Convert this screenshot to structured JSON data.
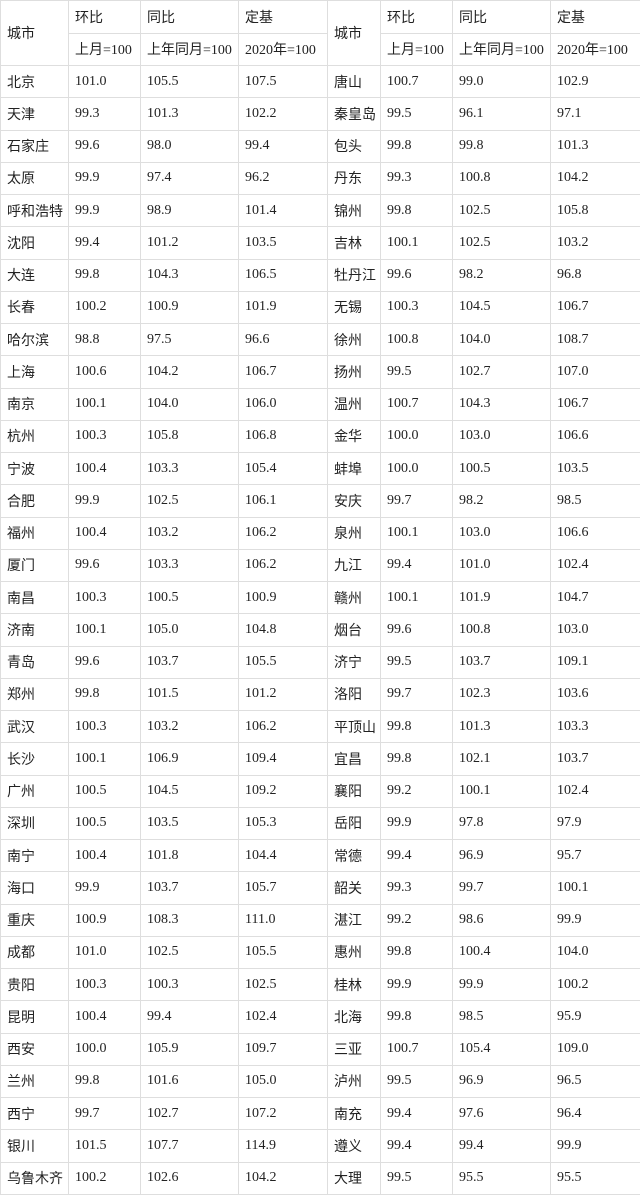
{
  "header": {
    "city": "城市",
    "mom": "环比",
    "yoy": "同比",
    "fixed": "定基",
    "mom_base": "上月=100",
    "yoy_base": "上年同月=100",
    "fixed_base": "2020年=100"
  },
  "rows": [
    [
      "北京",
      "101.0",
      "105.5",
      "107.5",
      "唐山",
      "100.7",
      "99.0",
      "102.9"
    ],
    [
      "天津",
      "99.3",
      "101.3",
      "102.2",
      "秦皇岛",
      "99.5",
      "96.1",
      "97.1"
    ],
    [
      "石家庄",
      "99.6",
      "98.0",
      "99.4",
      "包头",
      "99.8",
      "99.8",
      "101.3"
    ],
    [
      "太原",
      "99.9",
      "97.4",
      "96.2",
      "丹东",
      "99.3",
      "100.8",
      "104.2"
    ],
    [
      "呼和浩特",
      "99.9",
      "98.9",
      "101.4",
      "锦州",
      "99.8",
      "102.5",
      "105.8"
    ],
    [
      "沈阳",
      "99.4",
      "101.2",
      "103.5",
      "吉林",
      "100.1",
      "102.5",
      "103.2"
    ],
    [
      "大连",
      "99.8",
      "104.3",
      "106.5",
      "牡丹江",
      "99.6",
      "98.2",
      "96.8"
    ],
    [
      "长春",
      "100.2",
      "100.9",
      "101.9",
      "无锡",
      "100.3",
      "104.5",
      "106.7"
    ],
    [
      "哈尔滨",
      "98.8",
      "97.5",
      "96.6",
      "徐州",
      "100.8",
      "104.0",
      "108.7"
    ],
    [
      "上海",
      "100.6",
      "104.2",
      "106.7",
      "扬州",
      "99.5",
      "102.7",
      "107.0"
    ],
    [
      "南京",
      "100.1",
      "104.0",
      "106.0",
      "温州",
      "100.7",
      "104.3",
      "106.7"
    ],
    [
      "杭州",
      "100.3",
      "105.8",
      "106.8",
      "金华",
      "100.0",
      "103.0",
      "106.6"
    ],
    [
      "宁波",
      "100.4",
      "103.3",
      "105.4",
      "蚌埠",
      "100.0",
      "100.5",
      "103.5"
    ],
    [
      "合肥",
      "99.9",
      "102.5",
      "106.1",
      "安庆",
      "99.7",
      "98.2",
      "98.5"
    ],
    [
      "福州",
      "100.4",
      "103.2",
      "106.2",
      "泉州",
      "100.1",
      "103.0",
      "106.6"
    ],
    [
      "厦门",
      "99.6",
      "103.3",
      "106.2",
      "九江",
      "99.4",
      "101.0",
      "102.4"
    ],
    [
      "南昌",
      "100.3",
      "100.5",
      "100.9",
      "赣州",
      "100.1",
      "101.9",
      "104.7"
    ],
    [
      "济南",
      "100.1",
      "105.0",
      "104.8",
      "烟台",
      "99.6",
      "100.8",
      "103.0"
    ],
    [
      "青岛",
      "99.6",
      "103.7",
      "105.5",
      "济宁",
      "99.5",
      "103.7",
      "109.1"
    ],
    [
      "郑州",
      "99.8",
      "101.5",
      "101.2",
      "洛阳",
      "99.7",
      "102.3",
      "103.6"
    ],
    [
      "武汉",
      "100.3",
      "103.2",
      "106.2",
      "平顶山",
      "99.8",
      "101.3",
      "103.3"
    ],
    [
      "长沙",
      "100.1",
      "106.9",
      "109.4",
      "宜昌",
      "99.8",
      "102.1",
      "103.7"
    ],
    [
      "广州",
      "100.5",
      "104.5",
      "109.2",
      "襄阳",
      "99.2",
      "100.1",
      "102.4"
    ],
    [
      "深圳",
      "100.5",
      "103.5",
      "105.3",
      "岳阳",
      "99.9",
      "97.8",
      "97.9"
    ],
    [
      "南宁",
      "100.4",
      "101.8",
      "104.4",
      "常德",
      "99.4",
      "96.9",
      "95.7"
    ],
    [
      "海口",
      "99.9",
      "103.7",
      "105.7",
      "韶关",
      "99.3",
      "99.7",
      "100.1"
    ],
    [
      "重庆",
      "100.9",
      "108.3",
      "111.0",
      "湛江",
      "99.2",
      "98.6",
      "99.9"
    ],
    [
      "成都",
      "101.0",
      "102.5",
      "105.5",
      "惠州",
      "99.8",
      "100.4",
      "104.0"
    ],
    [
      "贵阳",
      "100.3",
      "100.3",
      "102.5",
      "桂林",
      "99.9",
      "99.9",
      "100.2"
    ],
    [
      "昆明",
      "100.4",
      "99.4",
      "102.4",
      "北海",
      "99.8",
      "98.5",
      "95.9"
    ],
    [
      "西安",
      "100.0",
      "105.9",
      "109.7",
      "三亚",
      "100.7",
      "105.4",
      "109.0"
    ],
    [
      "兰州",
      "99.8",
      "101.6",
      "105.0",
      "泸州",
      "99.5",
      "96.9",
      "96.5"
    ],
    [
      "西宁",
      "99.7",
      "102.7",
      "107.2",
      "南充",
      "99.4",
      "97.6",
      "96.4"
    ],
    [
      "银川",
      "101.5",
      "107.7",
      "114.9",
      "遵义",
      "99.4",
      "99.4",
      "99.9"
    ],
    [
      "乌鲁木齐",
      "100.2",
      "102.6",
      "104.2",
      "大理",
      "99.5",
      "95.5",
      "95.5"
    ]
  ]
}
